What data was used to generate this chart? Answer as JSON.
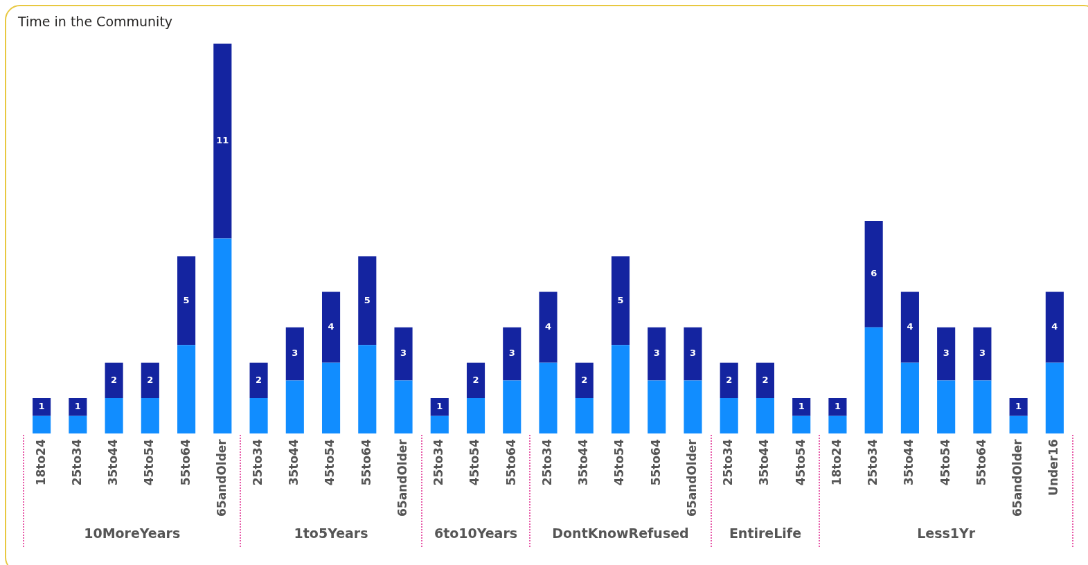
{
  "chart_data": {
    "type": "bar",
    "title": "Time in the Community",
    "stacked": true,
    "legend": false,
    "grid": false,
    "categories": [
      "18to24",
      "25to34",
      "35to44",
      "45to54",
      "55to64",
      "65andOlder",
      "25to34",
      "35to44",
      "45to54",
      "55to64",
      "65andOlder",
      "25to34",
      "45to54",
      "55to64",
      "25to34",
      "35to44",
      "45to54",
      "55to64",
      "65andOlder",
      "25to34",
      "35to44",
      "45to54",
      "18to24",
      "25to34",
      "35to44",
      "45to54",
      "55to64",
      "65andOlder",
      "Under16"
    ],
    "series": [
      {
        "color": "#118dff",
        "values": [
          1,
          1,
          2,
          2,
          5,
          11,
          2,
          3,
          4,
          5,
          3,
          1,
          2,
          3,
          4,
          2,
          5,
          3,
          3,
          2,
          2,
          1,
          1,
          6,
          4,
          3,
          3,
          1,
          4
        ]
      },
      {
        "color": "#1424a0",
        "values": [
          1,
          1,
          2,
          2,
          5,
          11,
          2,
          3,
          4,
          5,
          3,
          1,
          2,
          3,
          4,
          2,
          5,
          3,
          3,
          2,
          2,
          1,
          1,
          6,
          4,
          3,
          3,
          1,
          4
        ],
        "value_labels": [
          "1",
          "1",
          "2",
          "2",
          "5",
          "11",
          "2",
          "3",
          "4",
          "5",
          "3",
          "1",
          "2",
          "3",
          "4",
          "2",
          "5",
          "3",
          "3",
          "2",
          "2",
          "1",
          "1",
          "6",
          "4",
          "3",
          "3",
          "1",
          "4"
        ]
      }
    ],
    "annotations": [
      "10MoreYears",
      "1to5Years",
      "6to10Years",
      "DontKnowRefused",
      "EntireLife",
      "Less1Yr"
    ]
  }
}
